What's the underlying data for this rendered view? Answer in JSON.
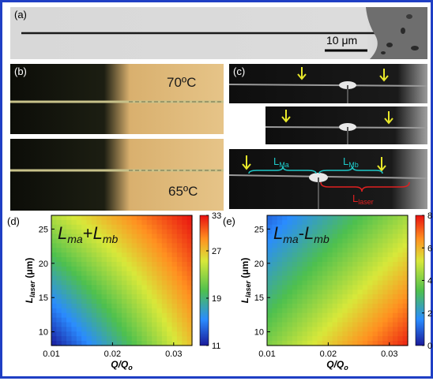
{
  "figure": {
    "border_color": "#1f3fc4",
    "panel_a": {
      "label": "(a)",
      "scale_bar": "10 μm"
    },
    "panel_b": {
      "label": "(b)",
      "temp_top": "70ºC",
      "temp_bottom": "65ºC"
    },
    "panel_c": {
      "label": "(c)",
      "label_ma_main": "L",
      "label_ma_sub": "Ma",
      "label_mb_main": "L",
      "label_mb_sub": "Mb",
      "label_laser_main": "L",
      "label_laser_sub": "laser",
      "arrow_color": "#e8e82a",
      "bracket_color": "#1ec8c8",
      "laser_color": "#e02020"
    }
  },
  "chart_data": [
    {
      "panel": "(d)",
      "type": "heatmap",
      "annotation": {
        "p1": "L",
        "s1": "ma",
        "op": "+",
        "p2": "L",
        "s2": "mb"
      },
      "ylabel": {
        "main": "L",
        "sub": "laser",
        "unit": " (μm)"
      },
      "xlabel": {
        "q": "Q",
        "slash": "/",
        "q0": "Q",
        "sub": "o"
      },
      "xlim": [
        0.01,
        0.033
      ],
      "ylim": [
        8,
        27
      ],
      "x_ticks": [
        "0.01",
        "0.02",
        "0.03"
      ],
      "y_ticks": [
        "10",
        "15",
        "20",
        "25"
      ],
      "colorbar": {
        "ticks": [
          "33",
          "27",
          "19",
          "11"
        ],
        "range": [
          11,
          33
        ]
      },
      "z_corners": {
        "bottom_left": 11,
        "top_left": 24,
        "bottom_right": 27,
        "top_right": 33
      }
    },
    {
      "panel": "(e)",
      "type": "heatmap",
      "annotation": {
        "p1": "L",
        "s1": "ma",
        "op": "-",
        "p2": "L",
        "s2": "mb"
      },
      "ylabel": {
        "main": "L",
        "sub": "laser",
        "unit": " (μm)"
      },
      "xlabel": {
        "q": "Q",
        "slash": "/",
        "q0": "Q",
        "sub": "o"
      },
      "xlim": [
        0.01,
        0.033
      ],
      "ylim": [
        8,
        27
      ],
      "x_ticks": [
        "0.01",
        "0.02",
        "0.03"
      ],
      "y_ticks": [
        "10",
        "15",
        "20",
        "25"
      ],
      "colorbar": {
        "ticks": [
          "8",
          "6",
          "4",
          "2",
          "0"
        ],
        "range": [
          0,
          8
        ]
      },
      "z_corners": {
        "bottom_left": 4,
        "top_left": 1,
        "bottom_right": 7.8,
        "top_right": 4.5
      }
    }
  ]
}
